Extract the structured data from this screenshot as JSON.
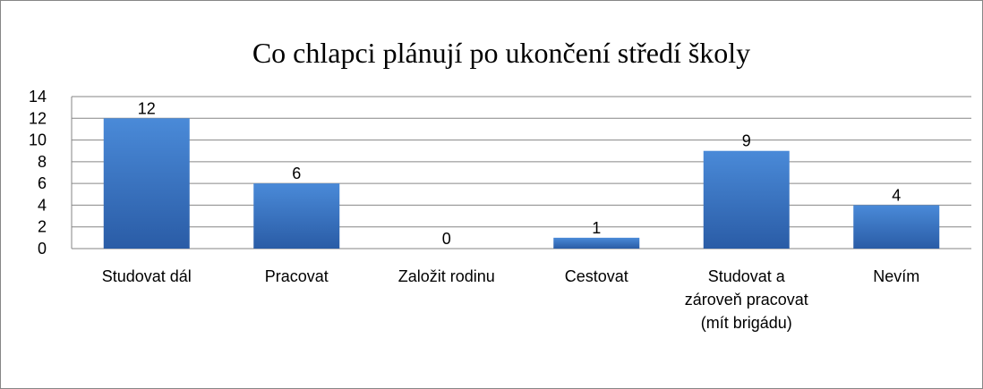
{
  "chart_data": {
    "type": "bar",
    "title": "Co chlapci plánují po ukončení středí školy",
    "categories": [
      "Studovat dál",
      "Pracovat",
      "Založit rodinu",
      "Cestovat",
      "Studovat a zároveň pracovat (mít brigádu)",
      "Nevím"
    ],
    "values": [
      12,
      6,
      0,
      1,
      9,
      4
    ],
    "color": "#3a75c4",
    "ylim": [
      0,
      14
    ],
    "yticks": [
      0,
      2,
      4,
      6,
      8,
      10,
      12,
      14
    ],
    "grid": true,
    "data_labels": true
  }
}
